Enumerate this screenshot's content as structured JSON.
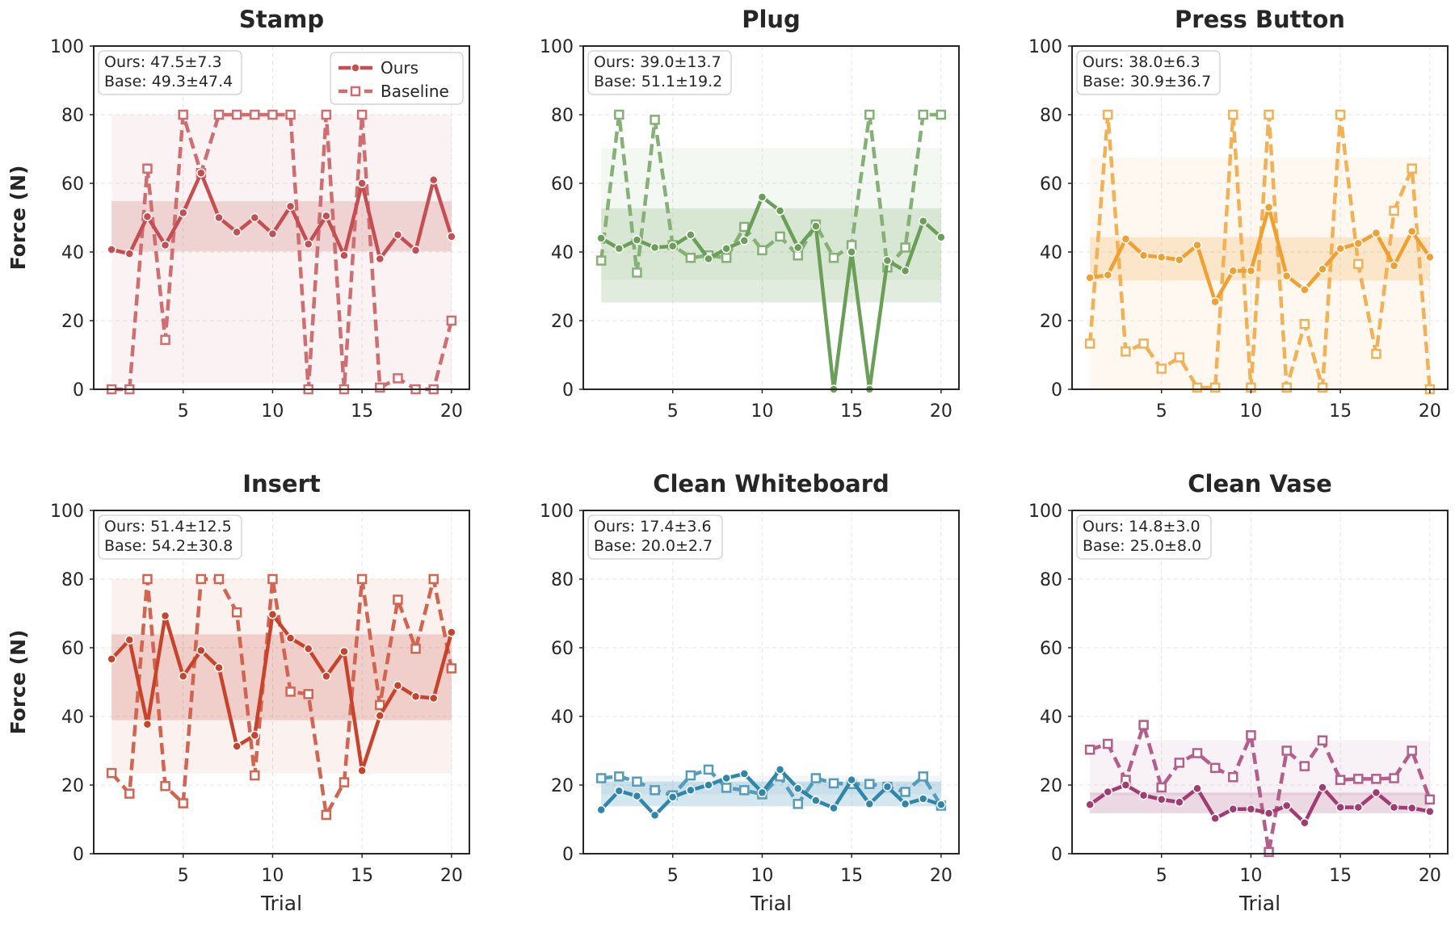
{
  "chart_data": [
    {
      "type": "line",
      "title": "Stamp",
      "xlabel": "",
      "ylabel": "Force (N)",
      "xlim": [
        0,
        21
      ],
      "ylim": [
        0,
        100
      ],
      "xticks": [
        5,
        10,
        15,
        20
      ],
      "yticks": [
        0,
        20,
        40,
        60,
        80,
        100
      ],
      "color": "#c44e52",
      "legend": "top-right",
      "stats": [
        "Ours: 47.5±7.3",
        "Base: 49.3±47.4"
      ],
      "band_ours": [
        40.2,
        54.8
      ],
      "band_base": [
        1.9,
        80
      ],
      "x": [
        1,
        2,
        3,
        4,
        5,
        6,
        7,
        8,
        9,
        10,
        11,
        12,
        13,
        14,
        15,
        16,
        17,
        18,
        19,
        20
      ],
      "series": [
        {
          "name": "Ours",
          "style": "solid",
          "values": [
            40.7,
            39.5,
            50.3,
            42.0,
            51.4,
            63.0,
            50.0,
            45.8,
            50.0,
            45.3,
            53.3,
            42.3,
            50.5,
            39.0,
            60.0,
            38.0,
            45.0,
            40.5,
            61.0,
            44.5
          ]
        },
        {
          "name": "Baseline",
          "style": "dashed",
          "values": [
            0,
            0,
            64.3,
            14.4,
            80,
            63.0,
            80,
            80,
            80,
            80,
            80,
            0,
            80,
            0,
            80,
            0.5,
            3.2,
            0,
            0,
            20
          ]
        }
      ]
    },
    {
      "type": "line",
      "title": "Plug",
      "xlabel": "",
      "ylabel": "",
      "xlim": [
        0,
        21
      ],
      "ylim": [
        0,
        100
      ],
      "xticks": [
        5,
        10,
        15,
        20
      ],
      "yticks": [
        0,
        20,
        40,
        60,
        80,
        100
      ],
      "color": "#6a9f58",
      "stats": [
        "Ours: 39.0±13.7",
        "Base: 51.1±19.2"
      ],
      "band_ours": [
        25.3,
        52.7
      ],
      "band_base": [
        31.9,
        70.3
      ],
      "x": [
        1,
        2,
        3,
        4,
        5,
        6,
        7,
        8,
        9,
        10,
        11,
        12,
        13,
        14,
        15,
        16,
        17,
        18,
        19,
        20
      ],
      "series": [
        {
          "name": "Ours",
          "style": "solid",
          "values": [
            44.0,
            41.0,
            43.5,
            41.3,
            41.7,
            45.0,
            38.0,
            41.0,
            43.3,
            56.0,
            52.0,
            41.3,
            47.5,
            0,
            40.0,
            0,
            37.5,
            34.5,
            49.0,
            44.3
          ]
        },
        {
          "name": "Baseline",
          "style": "dashed",
          "values": [
            37.5,
            80,
            34.0,
            78.5,
            42.0,
            38.3,
            39.0,
            38.3,
            47.3,
            40.5,
            44.5,
            39.0,
            48.0,
            38.3,
            42.0,
            80,
            35.5,
            41.3,
            80,
            80
          ]
        }
      ]
    },
    {
      "type": "line",
      "title": "Press Button",
      "xlabel": "",
      "ylabel": "",
      "xlim": [
        0,
        21
      ],
      "ylim": [
        0,
        100
      ],
      "xticks": [
        5,
        10,
        15,
        20
      ],
      "yticks": [
        0,
        20,
        40,
        60,
        80,
        100
      ],
      "color": "#f0a030",
      "stats": [
        "Ours: 38.0±6.3",
        "Base: 30.9±36.7"
      ],
      "band_ours": [
        31.7,
        44.3
      ],
      "band_base": [
        0,
        67.6
      ],
      "x": [
        1,
        2,
        3,
        4,
        5,
        6,
        7,
        8,
        9,
        10,
        11,
        12,
        13,
        14,
        15,
        16,
        17,
        18,
        19,
        20
      ],
      "series": [
        {
          "name": "Ours",
          "style": "solid",
          "values": [
            32.5,
            33.3,
            43.8,
            39.0,
            38.5,
            37.7,
            42.0,
            25.5,
            34.5,
            34.5,
            53.0,
            33.0,
            29.0,
            35.0,
            41.0,
            42.5,
            45.5,
            36.0,
            46.0,
            38.5
          ]
        },
        {
          "name": "Baseline",
          "style": "dashed",
          "values": [
            13.3,
            80,
            11.0,
            13.3,
            6.0,
            9.3,
            0.5,
            0.5,
            80,
            0.5,
            80,
            0.5,
            19.0,
            0.5,
            80,
            36.5,
            10.3,
            52.0,
            64.3,
            0
          ]
        }
      ]
    },
    {
      "type": "line",
      "title": "Insert",
      "xlabel": "Trial",
      "ylabel": "Force (N)",
      "xlim": [
        0,
        21
      ],
      "ylim": [
        0,
        100
      ],
      "xticks": [
        5,
        10,
        15,
        20
      ],
      "yticks": [
        0,
        20,
        40,
        60,
        80,
        100
      ],
      "color": "#c8432b",
      "stats": [
        "Ours: 51.4±12.5",
        "Base: 54.2±30.8"
      ],
      "band_ours": [
        38.9,
        63.9
      ],
      "band_base": [
        23.4,
        80
      ],
      "x": [
        1,
        2,
        3,
        4,
        5,
        6,
        7,
        8,
        9,
        10,
        11,
        12,
        13,
        14,
        15,
        16,
        17,
        18,
        19,
        20
      ],
      "series": [
        {
          "name": "Ours",
          "style": "solid",
          "values": [
            56.7,
            62.3,
            37.7,
            69.3,
            51.7,
            59.2,
            54.2,
            31.3,
            34.5,
            69.7,
            62.8,
            59.7,
            51.7,
            58.9,
            24.2,
            40.2,
            49.0,
            45.8,
            45.3,
            64.5
          ]
        },
        {
          "name": "Baseline",
          "style": "dashed",
          "values": [
            23.5,
            17.5,
            80,
            19.7,
            14.7,
            80,
            80,
            70.3,
            22.8,
            80,
            47.2,
            46.5,
            11.3,
            20.8,
            80,
            43.3,
            74.0,
            59.7,
            80,
            54.0
          ]
        }
      ]
    },
    {
      "type": "line",
      "title": "Clean Whiteboard",
      "xlabel": "Trial",
      "ylabel": "",
      "xlim": [
        0,
        21
      ],
      "ylim": [
        0,
        100
      ],
      "xticks": [
        5,
        10,
        15,
        20
      ],
      "yticks": [
        0,
        20,
        40,
        60,
        80,
        100
      ],
      "color": "#2e86ab",
      "stats": [
        "Ours: 17.4±3.6",
        "Base: 20.0±2.7"
      ],
      "band_ours": [
        13.8,
        21.0
      ],
      "band_base": [
        17.3,
        22.7
      ],
      "x": [
        1,
        2,
        3,
        4,
        5,
        6,
        7,
        8,
        9,
        10,
        11,
        12,
        13,
        14,
        15,
        16,
        17,
        18,
        19,
        20
      ],
      "series": [
        {
          "name": "Ours",
          "style": "solid",
          "values": [
            12.8,
            18.3,
            16.8,
            11.2,
            16.5,
            18.5,
            20.0,
            22.0,
            23.3,
            17.8,
            24.5,
            19.0,
            15.5,
            13.3,
            21.5,
            14.5,
            19.5,
            14.5,
            16.0,
            14.3
          ]
        },
        {
          "name": "Baseline",
          "style": "dashed",
          "values": [
            22.0,
            22.5,
            21.0,
            18.5,
            17.0,
            22.8,
            24.5,
            19.2,
            18.5,
            17.3,
            22.5,
            14.5,
            22.0,
            20.5,
            20.3,
            20.3,
            19.5,
            18.0,
            22.5,
            14.0
          ]
        }
      ]
    },
    {
      "type": "line",
      "title": "Clean Vase",
      "xlabel": "Trial",
      "ylabel": "",
      "xlim": [
        0,
        21
      ],
      "ylim": [
        0,
        100
      ],
      "xticks": [
        5,
        10,
        15,
        20
      ],
      "yticks": [
        0,
        20,
        40,
        60,
        80,
        100
      ],
      "color": "#a23b72",
      "stats": [
        "Ours: 14.8±3.0",
        "Base: 25.0±8.0"
      ],
      "band_ours": [
        11.8,
        17.8
      ],
      "band_base": [
        17.0,
        33.0
      ],
      "x": [
        1,
        2,
        3,
        4,
        5,
        6,
        7,
        8,
        9,
        10,
        11,
        12,
        13,
        14,
        15,
        16,
        17,
        18,
        19,
        20
      ],
      "series": [
        {
          "name": "Ours",
          "style": "solid",
          "values": [
            14.3,
            18.0,
            20.0,
            17.0,
            15.8,
            15.0,
            19.0,
            10.3,
            13.0,
            13.0,
            11.8,
            14.0,
            9.0,
            19.3,
            13.5,
            13.5,
            17.8,
            13.5,
            13.3,
            12.3
          ]
        },
        {
          "name": "Baseline",
          "style": "dashed",
          "values": [
            30.3,
            32.0,
            21.5,
            37.5,
            19.3,
            26.5,
            29.3,
            25.0,
            22.3,
            34.5,
            0.5,
            30.0,
            25.5,
            33.0,
            21.5,
            21.8,
            21.8,
            22.0,
            30.0,
            15.8
          ]
        }
      ]
    }
  ]
}
